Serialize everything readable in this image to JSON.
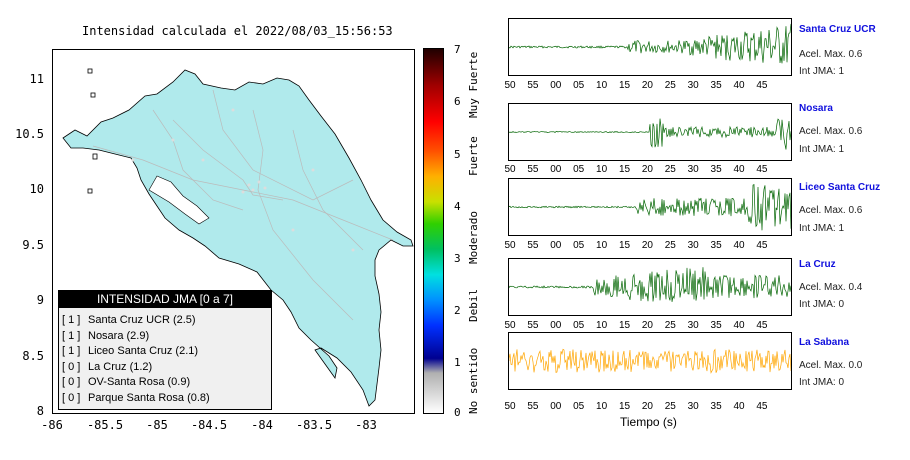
{
  "map": {
    "title": "Intensidad calculada el 2022/08/03_15:56:53",
    "y_ticks": [
      "11",
      "10.5",
      "10",
      "9.5",
      "9",
      "8.5",
      "8"
    ],
    "x_ticks": [
      "-86",
      "-85.5",
      "-85",
      "-84.5",
      "-84",
      "-83.5",
      "-83"
    ],
    "land_color": "#b0eaec",
    "legend": {
      "title": "INTENSIDAD JMA [0 a 7]",
      "rows": [
        {
          "badge": "[ 1 ]",
          "label": "Santa Cruz UCR (2.5)"
        },
        {
          "badge": "[ 1 ]",
          "label": "Nosara (2.9)"
        },
        {
          "badge": "[ 1 ]",
          "label": "Liceo Santa Cruz (2.1)"
        },
        {
          "badge": "[ 0 ]",
          "label": "La Cruz (1.2)"
        },
        {
          "badge": "[ 0 ]",
          "label": "OV-Santa Rosa (0.9)"
        },
        {
          "badge": "[ 0 ]",
          "label": "Parque Santa Rosa (0.8)"
        }
      ]
    }
  },
  "colorbar": {
    "ticks": [
      "7",
      "6",
      "5",
      "4",
      "3",
      "2",
      "1",
      "0"
    ],
    "labels": [
      "Muy Fuerte",
      "Fuerte",
      "Moderado",
      "Debil",
      "No sentido"
    ]
  },
  "traces": {
    "x_ticks": [
      "50",
      "55",
      "00",
      "05",
      "10",
      "15",
      "20",
      "25",
      "30",
      "35",
      "40",
      "45"
    ],
    "x_label": "Tiempo (s)",
    "stations": [
      {
        "name": "Santa Cruz UCR",
        "accel": "Acel. Max. 0.6",
        "jma": "Int JMA: 1",
        "color": "#006400"
      },
      {
        "name": "Nosara",
        "accel": "Acel. Max. 0.6",
        "jma": "Int JMA: 1",
        "color": "#006400"
      },
      {
        "name": "Liceo Santa Cruz",
        "accel": "Acel. Max. 0.6",
        "jma": "Int JMA: 1",
        "color": "#006400"
      },
      {
        "name": "La Cruz",
        "accel": "Acel. Max. 0.4",
        "jma": "Int JMA: 0",
        "color": "#006400"
      },
      {
        "name": "La Sabana",
        "accel": "Acel. Max. 0.0",
        "jma": "Int JMA: 0",
        "color": "#ffa500"
      }
    ]
  }
}
